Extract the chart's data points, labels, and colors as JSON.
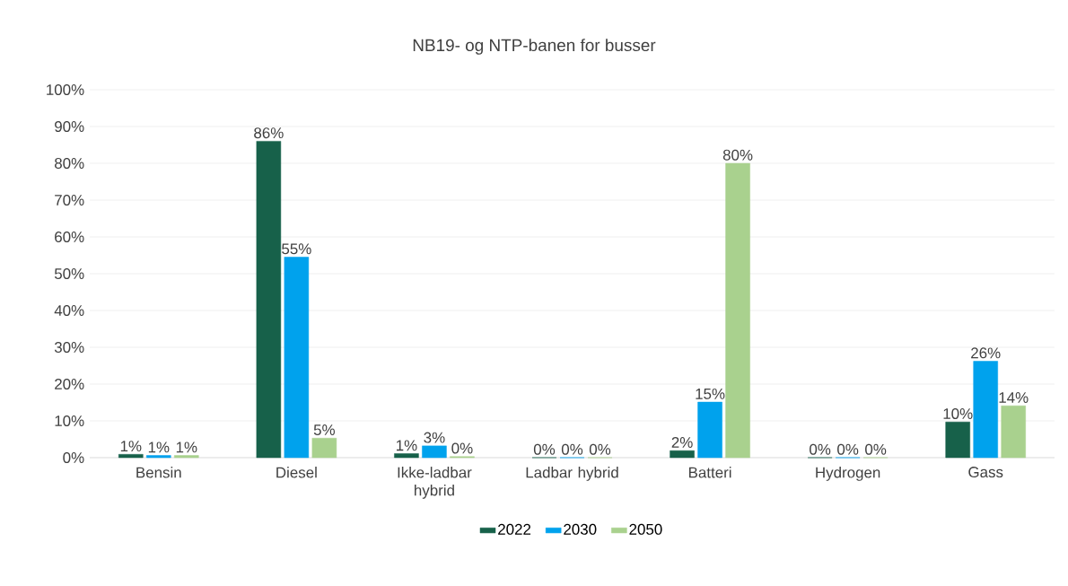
{
  "chart_data": {
    "type": "bar",
    "title": "NB19- og NTP-banen for busser",
    "categories": [
      "Bensin",
      "Diesel",
      "Ikke-ladbar hybrid",
      "Ladbar hybrid",
      "Batteri",
      "Hydrogen",
      "Gass"
    ],
    "series": [
      {
        "name": "2022",
        "color": "#17614a",
        "values": [
          0.9,
          86,
          1.1,
          0,
          1.9,
          0,
          9.7
        ],
        "value_labels": [
          "1%",
          "86%",
          "1%",
          "0%",
          "2%",
          "0%",
          "10%"
        ]
      },
      {
        "name": "2030",
        "color": "#00a2ed",
        "values": [
          0.6,
          54.5,
          3.2,
          0,
          15.1,
          0,
          26.2
        ],
        "value_labels": [
          "1%",
          "55%",
          "3%",
          "0%",
          "15%",
          "0%",
          "26%"
        ]
      },
      {
        "name": "2050",
        "color": "#a9d18e",
        "values": [
          0.6,
          5.3,
          0.3,
          0,
          80,
          0,
          14.1
        ],
        "value_labels": [
          "1%",
          "5%",
          "0%",
          "0%",
          "80%",
          "0%",
          "14%"
        ]
      }
    ],
    "ylim": [
      0,
      100
    ],
    "yticks": [
      {
        "value": 0,
        "label": "0%"
      },
      {
        "value": 10,
        "label": "10%"
      },
      {
        "value": 20,
        "label": "20%"
      },
      {
        "value": 30,
        "label": "30%"
      },
      {
        "value": 40,
        "label": "40%"
      },
      {
        "value": 50,
        "label": "50%"
      },
      {
        "value": 60,
        "label": "60%"
      },
      {
        "value": 70,
        "label": "70%"
      },
      {
        "value": 80,
        "label": "80%"
      },
      {
        "value": 90,
        "label": "90%"
      },
      {
        "value": 100,
        "label": "100%"
      }
    ],
    "grid": "y",
    "legend": "bottom"
  }
}
